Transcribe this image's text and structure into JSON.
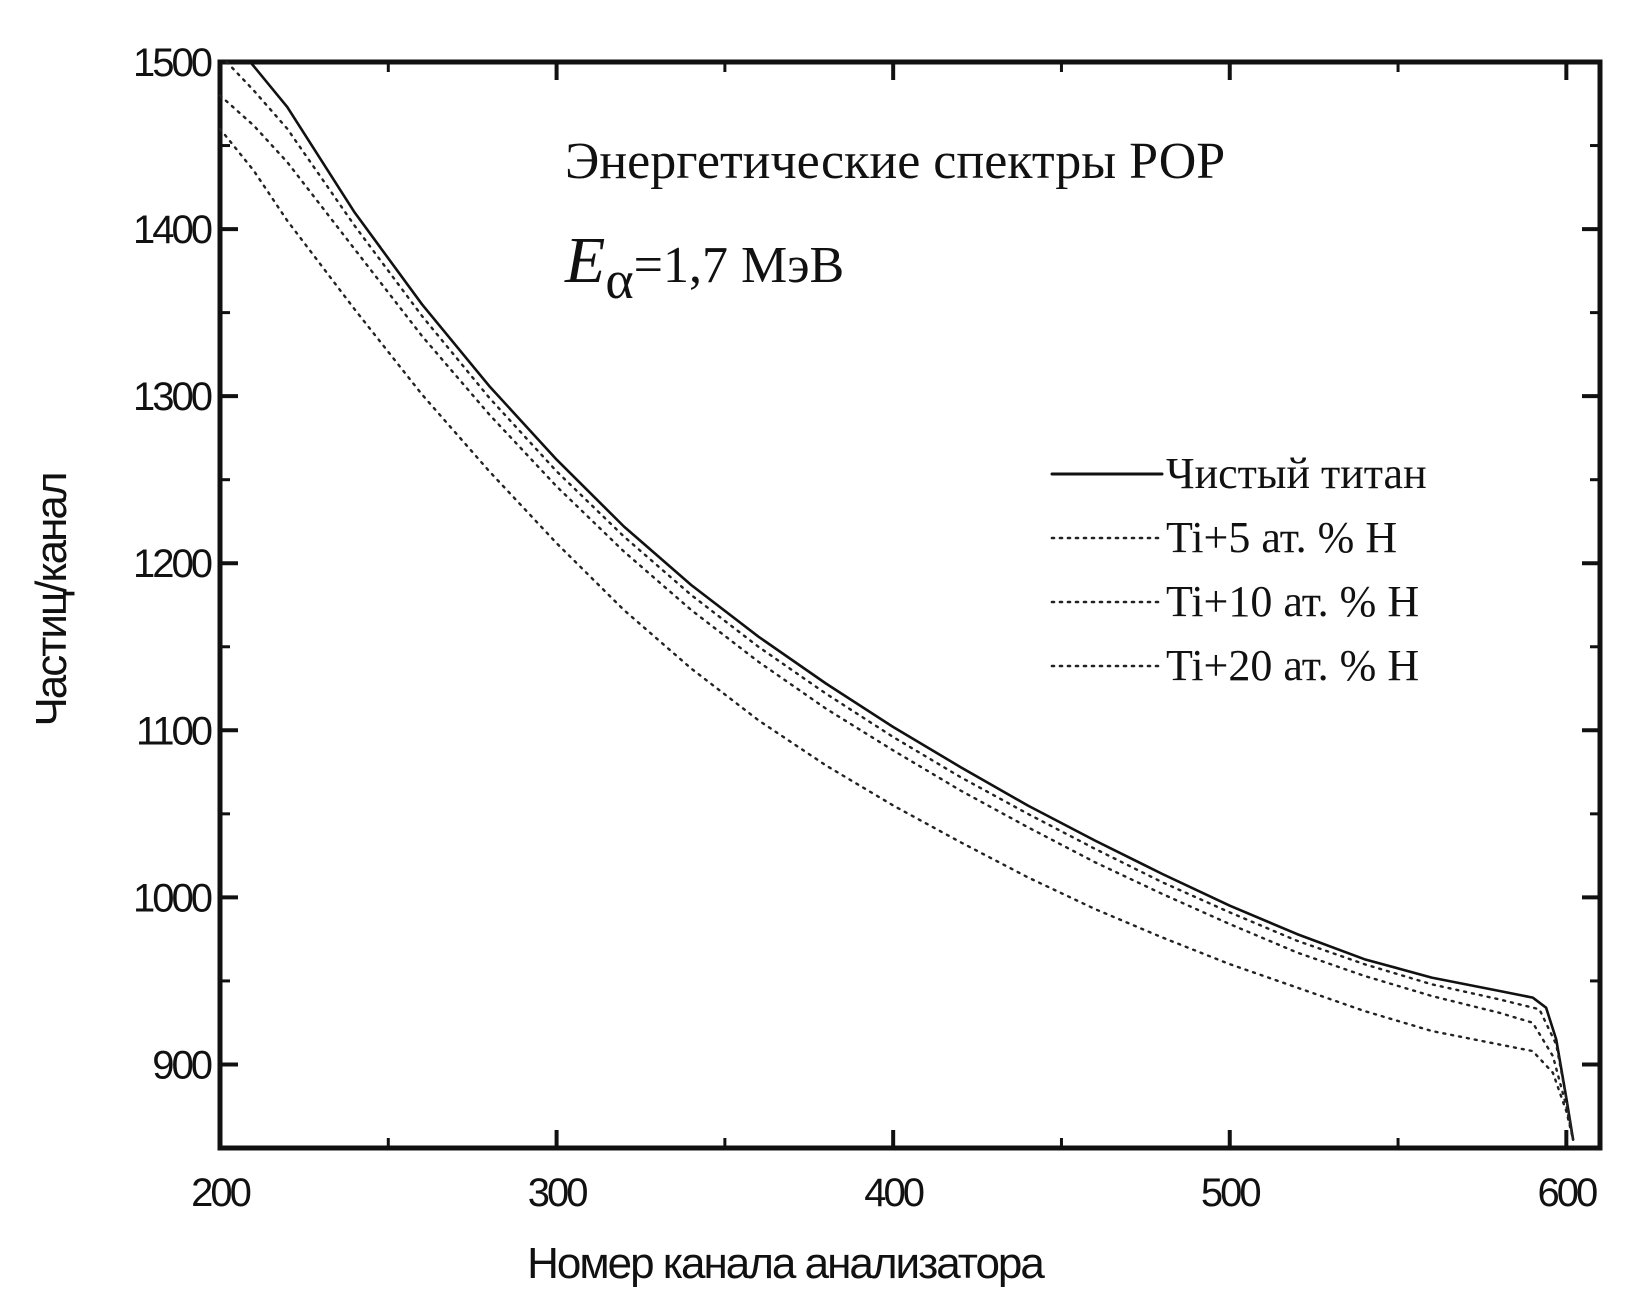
{
  "chart_data": {
    "type": "line",
    "title": "Энергетические спектры РОР",
    "subtitle": {
      "symbol": "E",
      "subscript": "α",
      "value": "=1,7 МэВ"
    },
    "xlabel": "Номер канала анализатора",
    "ylabel": "Частиц/канал",
    "xlim": [
      200,
      610
    ],
    "ylim": [
      850,
      1500
    ],
    "xticks": [
      200,
      300,
      400,
      500,
      600
    ],
    "yticks": [
      900,
      1000,
      1100,
      1200,
      1300,
      1400,
      1500
    ],
    "legend_placement": "right",
    "grid": false,
    "series": [
      {
        "name": "Чистый титан",
        "style": "solid",
        "color": "#111111",
        "x": [
          209,
          220,
          240,
          260,
          280,
          300,
          320,
          340,
          360,
          380,
          400,
          420,
          440,
          460,
          480,
          500,
          520,
          540,
          560,
          580,
          590,
          594,
          597,
          600,
          602
        ],
        "y": [
          1500,
          1473,
          1410,
          1355,
          1306,
          1262,
          1222,
          1187,
          1156,
          1128,
          1102,
          1078,
          1055,
          1034,
          1014,
          995,
          978,
          963,
          952,
          944,
          940,
          934,
          915,
          880,
          855
        ]
      },
      {
        "name": "Ti+5 ат. % Н",
        "style": "dotted",
        "color": "#222222",
        "x": [
          202,
          210,
          220,
          240,
          260,
          280,
          300,
          320,
          340,
          360,
          380,
          400,
          420,
          440,
          460,
          480,
          500,
          520,
          540,
          560,
          580,
          592,
          597,
          600,
          602
        ],
        "y": [
          1500,
          1483,
          1460,
          1402,
          1348,
          1299,
          1255,
          1216,
          1181,
          1150,
          1122,
          1096,
          1072,
          1050,
          1029,
          1009,
          991,
          974,
          960,
          948,
          939,
          933,
          912,
          880,
          855
        ]
      },
      {
        "name": "Ti+10 ат. % Н",
        "style": "dotted",
        "color": "#222222",
        "x": [
          200,
          210,
          220,
          240,
          260,
          280,
          300,
          320,
          340,
          360,
          380,
          400,
          420,
          440,
          460,
          480,
          500,
          520,
          540,
          560,
          580,
          590,
          596,
          600,
          602
        ],
        "y": [
          1480,
          1462,
          1440,
          1388,
          1336,
          1289,
          1246,
          1207,
          1172,
          1141,
          1113,
          1088,
          1064,
          1042,
          1021,
          1002,
          984,
          967,
          953,
          941,
          931,
          925,
          905,
          875,
          855
        ]
      },
      {
        "name": "Ti+20 ат. % Н",
        "style": "dotted",
        "color": "#222222",
        "x": [
          200,
          210,
          220,
          240,
          260,
          280,
          300,
          320,
          340,
          360,
          380,
          400,
          420,
          440,
          460,
          480,
          500,
          520,
          540,
          560,
          580,
          590,
          596,
          600,
          602
        ],
        "y": [
          1460,
          1435,
          1405,
          1352,
          1301,
          1255,
          1212,
          1172,
          1137,
          1106,
          1079,
          1055,
          1033,
          1012,
          993,
          976,
          960,
          946,
          932,
          920,
          912,
          908,
          895,
          872,
          855
        ]
      }
    ]
  }
}
